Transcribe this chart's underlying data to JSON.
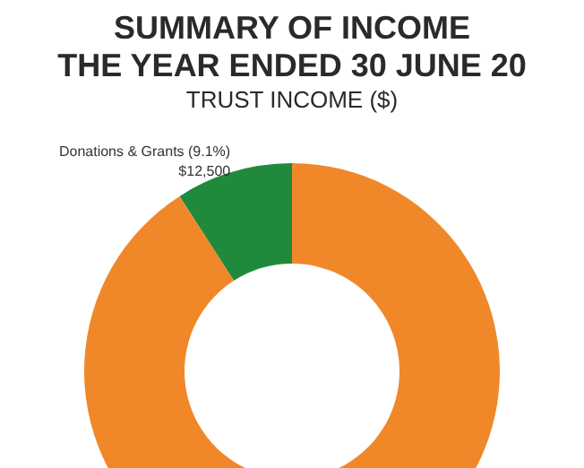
{
  "chart_data": {
    "type": "donut",
    "title": "SUMMARY OF INCOME\nTHE YEAR ENDED 30 JUNE 20",
    "subtitle": "TRUST INCOME ($)",
    "categories": [
      "Donations & Grants",
      null
    ],
    "values": [
      9.1,
      90.9
    ],
    "colors": [
      "#1f8a3c",
      "#f0882a"
    ],
    "value_labels": [
      "(9.1%)\n$12,500",
      null
    ],
    "legend": false
  }
}
